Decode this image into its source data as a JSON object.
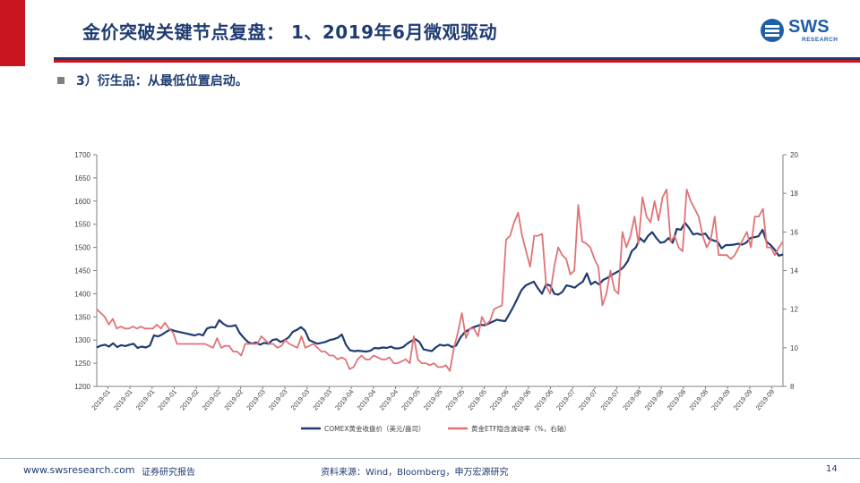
{
  "header": {
    "title": "金价突破关键节点复盘： 1、2019年6月微观驱动",
    "logo_text": "SWS",
    "logo_sub": "RESEARCH"
  },
  "subtitle": "3）衍生品：从最低位置启动。",
  "footer": {
    "website": "www.swsresearch.com",
    "company": "证券研究报告",
    "source": "资料来源：Wind，Bloomberg，申万宏源研究",
    "page": "14"
  },
  "chart_data": {
    "type": "line",
    "x_tick_labels": [
      "2019-01",
      "2019-01",
      "2019-01",
      "2019-01",
      "2019-02",
      "2019-02",
      "2019-02",
      "2019-03",
      "2019-03",
      "2019-03",
      "2019-03",
      "2019-04",
      "2019-04",
      "2019-04",
      "2019-05",
      "2019-05",
      "2019-05",
      "2019-05",
      "2019-06",
      "2019-06",
      "2019-06",
      "2019-07",
      "2019-07",
      "2019-07",
      "2019-08",
      "2019-08",
      "2019-08",
      "2019-08",
      "2019-09",
      "2019-09",
      "2019-09"
    ],
    "y_left": {
      "ylim": [
        1200,
        1700
      ],
      "ticks": [
        1200,
        1250,
        1300,
        1350,
        1400,
        1450,
        1500,
        1550,
        1600,
        1650,
        1700
      ]
    },
    "y_right": {
      "ylim": [
        8,
        20
      ],
      "ticks": [
        8,
        10,
        12,
        14,
        16,
        18,
        20
      ]
    },
    "legend_position": "bottom",
    "series": [
      {
        "name": "COMEX黄金收盘价（美元/盎司）",
        "axis": "left",
        "color": "#1f3c72",
        "values": [
          1284,
          1288,
          1290,
          1286,
          1293,
          1285,
          1289,
          1287,
          1290,
          1292,
          1283,
          1286,
          1284,
          1288,
          1310,
          1308,
          1312,
          1318,
          1323,
          1320,
          1318,
          1316,
          1314,
          1312,
          1310,
          1313,
          1310,
          1325,
          1328,
          1327,
          1343,
          1335,
          1330,
          1330,
          1332,
          1315,
          1305,
          1296,
          1292,
          1295,
          1290,
          1294,
          1292,
          1300,
          1302,
          1296,
          1300,
          1306,
          1318,
          1322,
          1328,
          1320,
          1300,
          1296,
          1292,
          1294,
          1296,
          1300,
          1302,
          1305,
          1312,
          1290,
          1278,
          1276,
          1277,
          1276,
          1275,
          1277,
          1283,
          1282,
          1284,
          1283,
          1286,
          1282,
          1282,
          1285,
          1292,
          1298,
          1302,
          1296,
          1280,
          1278,
          1276,
          1284,
          1290,
          1288,
          1290,
          1285,
          1288,
          1305,
          1316,
          1322,
          1327,
          1330,
          1333,
          1332,
          1336,
          1340,
          1344,
          1342,
          1341,
          1356,
          1372,
          1390,
          1408,
          1418,
          1422,
          1426,
          1412,
          1400,
          1420,
          1418,
          1400,
          1398,
          1404,
          1418,
          1416,
          1413,
          1420,
          1426,
          1444,
          1420,
          1426,
          1420,
          1430,
          1434,
          1440,
          1445,
          1450,
          1458,
          1470,
          1492,
          1500,
          1520,
          1512,
          1525,
          1533,
          1520,
          1510,
          1512,
          1520,
          1510,
          1540,
          1538,
          1553,
          1542,
          1528,
          1530,
          1527,
          1530,
          1518,
          1515,
          1512,
          1498,
          1505,
          1505,
          1506,
          1508,
          1506,
          1510,
          1520,
          1522,
          1524,
          1538,
          1512,
          1505,
          1495,
          1482,
          1485
        ]
      },
      {
        "name": "黄金ETF隐含波动率（%，右轴）",
        "axis": "right",
        "color": "#e07377",
        "values": [
          12.0,
          11.8,
          11.6,
          11.2,
          11.5,
          11.0,
          11.1,
          11.0,
          11.0,
          11.1,
          11.0,
          11.1,
          11.0,
          11.0,
          11.0,
          11.2,
          11.0,
          11.3,
          11.0,
          10.8,
          10.2,
          10.2,
          10.2,
          10.2,
          10.2,
          10.2,
          10.2,
          10.2,
          10.1,
          10.0,
          10.5,
          10.0,
          10.1,
          10.1,
          9.8,
          9.8,
          9.6,
          10.2,
          10.2,
          10.2,
          10.2,
          10.6,
          10.4,
          10.2,
          10.2,
          10.0,
          10.1,
          10.4,
          10.2,
          10.1,
          10.0,
          10.6,
          10.0,
          10.1,
          10.2,
          10.0,
          9.8,
          9.8,
          9.6,
          9.6,
          9.4,
          9.5,
          9.4,
          8.9,
          9.0,
          9.4,
          9.6,
          9.4,
          9.4,
          9.6,
          9.5,
          9.4,
          9.4,
          9.5,
          9.2,
          9.2,
          9.3,
          9.4,
          9.2,
          10.6,
          9.4,
          9.2,
          9.2,
          9.1,
          9.2,
          9.0,
          9.0,
          9.1,
          8.8,
          10.0,
          10.8,
          11.8,
          10.5,
          11.0,
          11.0,
          10.6,
          11.6,
          11.2,
          11.4,
          12.0,
          12.1,
          12.2,
          15.6,
          15.8,
          16.5,
          17.0,
          15.8,
          15.0,
          14.2,
          15.8,
          15.8,
          15.9,
          13.2,
          12.8,
          14.2,
          15.2,
          14.8,
          14.6,
          13.8,
          14.0,
          17.4,
          15.5,
          15.4,
          15.2,
          14.6,
          14.2,
          12.2,
          12.8,
          14.0,
          13.0,
          12.8,
          16.0,
          15.2,
          15.8,
          16.8,
          15.4,
          17.8,
          16.8,
          16.5,
          17.6,
          16.6,
          17.8,
          18.2,
          15.5,
          15.8,
          15.2,
          15.0,
          18.2,
          17.6,
          17.2,
          16.8,
          15.8,
          15.2,
          15.6,
          16.8,
          14.8,
          14.8,
          14.8,
          14.6,
          14.8,
          15.2,
          15.6,
          16.0,
          15.2,
          16.8,
          16.8,
          17.2,
          15.2,
          15.2,
          14.8,
          15.2,
          15.5
        ]
      }
    ]
  }
}
